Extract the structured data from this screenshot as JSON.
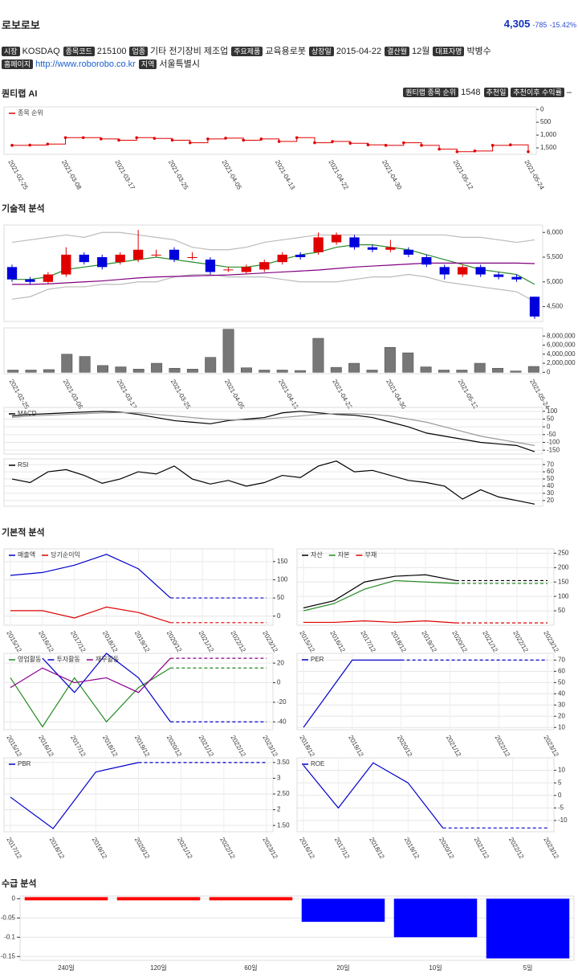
{
  "header": {
    "name": "로보로보",
    "price": "4,305",
    "change": "-785",
    "change_pct": "-15.42%"
  },
  "info": [
    {
      "label": "시장",
      "value": "KOSDAQ"
    },
    {
      "label": "종목코드",
      "value": "215100"
    },
    {
      "label": "업종",
      "value": "기타 전기장비 제조업"
    },
    {
      "label": "주요제품",
      "value": "교육용로봇"
    },
    {
      "label": "상장일",
      "value": "2015-04-22"
    },
    {
      "label": "결산월",
      "value": "12월"
    },
    {
      "label": "대표자명",
      "value": "박병수"
    }
  ],
  "info2": [
    {
      "label": "홈페이지",
      "value": "http://www.roborobo.co.kr"
    },
    {
      "label": "지역",
      "value": "서울특별시"
    }
  ],
  "quantilab": {
    "title": "퀀티랩 AI",
    "items": [
      {
        "label": "퀀티랩 종목 순위",
        "value": "1548"
      },
      {
        "label": "추천일"
      },
      {
        "label": "추천이후 수익률",
        "value": "–"
      }
    ]
  },
  "sections": [
    "기술적 분석",
    "기본적 분석",
    "수급 분석"
  ],
  "chart_data": [
    {
      "type": "step",
      "y_reversed": true,
      "ylim": [
        -100,
        1750
      ],
      "yticks": [
        0,
        500,
        {
          "value": 1000,
          "label": "1,000"
        },
        {
          "value": 1500,
          "label": "1,500"
        }
      ],
      "categories": [
        "2021-02-25",
        null,
        null,
        "2021-03-08",
        null,
        null,
        "2021-03-17",
        null,
        null,
        "2021-03-25",
        null,
        null,
        "2021-04-05",
        null,
        null,
        "2021-04-13",
        null,
        null,
        "2021-04-22",
        null,
        null,
        "2021-04-30",
        null,
        null,
        null,
        "2021-05-12",
        null,
        null,
        null,
        "2021-05-24"
      ],
      "series": [
        {
          "name": "종목 순위",
          "color": "#e00000",
          "values": [
            1400,
            1390,
            1350,
            1100,
            1100,
            1150,
            1200,
            1100,
            1130,
            1200,
            1300,
            1150,
            1120,
            1200,
            1150,
            1250,
            1100,
            1300,
            1250,
            1320,
            1380,
            1400,
            1300,
            1400,
            1550,
            1650,
            1620,
            1400,
            1380,
            1650
          ]
        }
      ]
    },
    {
      "type": "candlestick",
      "ylim": [
        4200,
        6150
      ],
      "yticks": [
        {
          "value": 4500,
          "label": "4,500"
        },
        {
          "value": 5000,
          "label": "5,000"
        },
        {
          "value": 5500,
          "label": "5,500"
        },
        {
          "value": 6000,
          "label": "6,000"
        }
      ],
      "up_color": "#e00000",
      "down_color": "#0000dd",
      "open": [
        5300,
        5050,
        5000,
        5150,
        5550,
        5500,
        5400,
        5450,
        5550,
        5650,
        5500,
        5450,
        5250,
        5200,
        5250,
        5400,
        5550,
        5600,
        5800,
        5900,
        5700,
        5650,
        5650,
        5500,
        5300,
        5150,
        5300,
        5150,
        5100,
        4700
      ],
      "high": [
        5350,
        5100,
        5200,
        5700,
        5600,
        5550,
        5600,
        6050,
        5650,
        5700,
        5600,
        5500,
        5300,
        5350,
        5450,
        5600,
        5600,
        6000,
        6000,
        5950,
        5750,
        5850,
        5700,
        5550,
        5350,
        5350,
        5350,
        5200,
        5150,
        4700
      ],
      "low": [
        5000,
        4950,
        4950,
        5100,
        5350,
        5250,
        5350,
        5400,
        5500,
        5400,
        5450,
        5150,
        5200,
        5150,
        5200,
        5350,
        5450,
        5550,
        5750,
        5650,
        5600,
        5600,
        5500,
        5300,
        5050,
        5100,
        5100,
        5050,
        5000,
        4250
      ],
      "close": [
        5050,
        5000,
        5150,
        5550,
        5400,
        5300,
        5550,
        5650,
        5550,
        5450,
        5500,
        5200,
        5250,
        5300,
        5400,
        5550,
        5500,
        5900,
        5950,
        5700,
        5650,
        5700,
        5550,
        5350,
        5150,
        5300,
        5150,
        5100,
        5050,
        4300
      ],
      "series": [
        {
          "color": "#bbbbbb",
          "values": [
            5800,
            5850,
            5900,
            5950,
            5900,
            6000,
            6000,
            5950,
            5900,
            5850,
            5700,
            5650,
            5650,
            5700,
            5800,
            5850,
            5900,
            5950,
            5950,
            5950,
            5950,
            5950,
            5950,
            5950,
            5950,
            5900,
            5900,
            5850,
            5800,
            5850
          ]
        },
        {
          "color": "#bbbbbb",
          "values": [
            4650,
            4700,
            4850,
            4900,
            4900,
            4950,
            4950,
            5000,
            5000,
            5100,
            5150,
            5150,
            5100,
            5100,
            5100,
            5050,
            5000,
            5000,
            5000,
            5050,
            5100,
            5100,
            5150,
            5100,
            5000,
            4950,
            4900,
            4850,
            4800,
            4600
          ]
        },
        {
          "color": "#2a8a2a",
          "values": [
            5050,
            5050,
            5100,
            5250,
            5300,
            5350,
            5400,
            5450,
            5500,
            5450,
            5400,
            5350,
            5300,
            5300,
            5350,
            5450,
            5550,
            5600,
            5700,
            5750,
            5750,
            5700,
            5650,
            5550,
            5450,
            5350,
            5250,
            5200,
            5150,
            4950
          ]
        },
        {
          "color": "#800080",
          "values": [
            4950,
            4950,
            4960,
            4980,
            5000,
            5020,
            5050,
            5080,
            5100,
            5110,
            5120,
            5130,
            5140,
            5160,
            5180,
            5200,
            5220,
            5240,
            5270,
            5300,
            5320,
            5340,
            5360,
            5380,
            5380,
            5380,
            5380,
            5380,
            5380,
            5370
          ]
        }
      ]
    },
    {
      "type": "bar",
      "color": "#777777",
      "ylim": [
        -300000,
        9800000
      ],
      "yticks": [
        0,
        {
          "value": 2000000,
          "label": "2,000,000"
        },
        {
          "value": 4000000,
          "label": "4,000,000"
        },
        {
          "value": 6000000,
          "label": "6,000,000"
        },
        {
          "value": 8000000,
          "label": "8,000,000"
        }
      ],
      "categories": [
        "2021-02-25",
        null,
        null,
        "2021-03-08",
        null,
        null,
        "2021-03-17",
        null,
        null,
        "2021-03-25",
        null,
        null,
        "2021-04-05",
        null,
        null,
        "2021-04-13",
        null,
        null,
        "2021-04-22",
        null,
        null,
        "2021-04-30",
        null,
        null,
        null,
        "2021-05-12",
        null,
        null,
        null,
        "2021-05-24"
      ],
      "values": [
        500000,
        500000,
        600000,
        4000000,
        3500000,
        1500000,
        1200000,
        700000,
        2000000,
        900000,
        700000,
        3300000,
        9500000,
        1000000,
        500000,
        500000,
        400000,
        7500000,
        1100000,
        2000000,
        500000,
        5500000,
        4300000,
        1200000,
        500000,
        500000,
        2000000,
        900000,
        300000,
        1300000
      ]
    },
    {
      "type": "line",
      "ylim": [
        -175,
        125
      ],
      "yticks": [
        100,
        50,
        0,
        -50,
        -100,
        -150
      ],
      "grid": true,
      "series": [
        {
          "name": "MACD",
          "color": "#000000",
          "values": [
            70,
            80,
            85,
            90,
            95,
            100,
            95,
            80,
            60,
            40,
            30,
            20,
            40,
            50,
            60,
            90,
            100,
            90,
            80,
            75,
            60,
            30,
            0,
            -40,
            -60,
            -80,
            -100,
            -110,
            -120,
            -160
          ]
        },
        {
          "color": "#999999",
          "values": [
            60,
            70,
            75,
            80,
            85,
            90,
            92,
            90,
            80,
            70,
            60,
            50,
            45,
            45,
            50,
            60,
            70,
            80,
            85,
            85,
            80,
            70,
            50,
            30,
            0,
            -30,
            -60,
            -80,
            -100,
            -120
          ]
        }
      ]
    },
    {
      "type": "line",
      "ylim": [
        12,
        78
      ],
      "yticks": [
        20,
        30,
        40,
        50,
        60,
        70
      ],
      "grid": true,
      "series": [
        {
          "name": "RSI",
          "color": "#000000",
          "values": [
            50,
            45,
            60,
            63,
            55,
            44,
            50,
            60,
            57,
            68,
            50,
            43,
            48,
            40,
            45,
            55,
            52,
            68,
            75,
            60,
            62,
            55,
            48,
            45,
            40,
            22,
            35,
            25,
            20,
            15
          ]
        }
      ]
    },
    {
      "type": "line",
      "ylim": [
        -25,
        185
      ],
      "yticks": [
        0,
        50,
        100,
        150
      ],
      "grid": true,
      "dashed_from_index": 5,
      "categories": [
        "2015/12",
        "2016/12",
        "2017/12",
        "2018/12",
        "2019/12",
        "2020/12",
        "2021/12",
        "2022/12",
        "2023/12"
      ],
      "series": [
        {
          "name": "매출액",
          "color": "#0000cc",
          "values": [
            112,
            120,
            140,
            170,
            130,
            50,
            50,
            50,
            50
          ]
        },
        {
          "name": "당기순이익",
          "color": "#dd0000",
          "values": [
            15,
            15,
            -5,
            25,
            10,
            -18,
            -18,
            -18,
            -18
          ]
        }
      ]
    },
    {
      "type": "line",
      "ylim": [
        0,
        265
      ],
      "yticks": [
        50,
        100,
        150,
        200,
        250
      ],
      "grid": true,
      "dashed_from_index": 5,
      "categories": [
        "2015/12",
        "2016/12",
        "2017/12",
        "2018/12",
        "2019/12",
        "2020/12",
        "2021/12",
        "2022/12",
        "2023/12"
      ],
      "series": [
        {
          "name": "자산",
          "color": "#000000",
          "values": [
            60,
            85,
            150,
            170,
            175,
            155,
            155,
            155,
            155
          ]
        },
        {
          "name": "자본",
          "color": "#228b22",
          "values": [
            50,
            75,
            125,
            155,
            150,
            145,
            145,
            145,
            145
          ]
        },
        {
          "name": "부채",
          "color": "#dd0000",
          "values": [
            10,
            10,
            15,
            10,
            15,
            8,
            8,
            8,
            8
          ]
        }
      ]
    },
    {
      "type": "line",
      "ylim": [
        -48,
        30
      ],
      "yticks": [
        20,
        0,
        -20,
        -40
      ],
      "grid": true,
      "dashed_from_index": 5,
      "categories": [
        "2015/12",
        "2016/12",
        "2017/12",
        "2018/12",
        "2019/12",
        "2020/12",
        "2021/12",
        "2022/12",
        "2023/12"
      ],
      "series": [
        {
          "name": "영업활동",
          "color": "#228b22",
          "values": [
            5,
            -45,
            5,
            -40,
            -5,
            15,
            15,
            15,
            15
          ]
        },
        {
          "name": "투자활동",
          "color": "#0000cc",
          "values": [
            null,
            25,
            -10,
            30,
            5,
            -40,
            -40,
            -40,
            -40
          ]
        },
        {
          "name": "재무활동",
          "color": "#8b008b",
          "values": [
            -5,
            15,
            0,
            5,
            -10,
            25,
            25,
            25,
            25
          ]
        }
      ]
    },
    {
      "type": "line",
      "ylim": [
        8,
        76
      ],
      "yticks": [
        10,
        20,
        30,
        40,
        50,
        60,
        70
      ],
      "grid": true,
      "dashed_from_index": 2,
      "categories": [
        "2018/12",
        "2019/12",
        "2020/12",
        "2021/12",
        "2022/12",
        "2023/12"
      ],
      "series": [
        {
          "name": "PER",
          "color": "#0000cc",
          "values": [
            10,
            70,
            70,
            70,
            70,
            70
          ]
        }
      ]
    },
    {
      "type": "line",
      "ylim": [
        1.3,
        3.65
      ],
      "yticks": [
        {
          "value": 1.5,
          "label": "1.50"
        },
        2,
        {
          "value": 2.5,
          "label": "2.50"
        },
        3,
        {
          "value": 3.5,
          "label": "3.50"
        }
      ],
      "grid": true,
      "dashed_from_index": 3,
      "categories": [
        "2017/12",
        "2018/12",
        "2019/12",
        "2020/12",
        "2021/12",
        "2022/12",
        "2023/12"
      ],
      "series": [
        {
          "name": "PBR",
          "color": "#0000cc",
          "values": [
            2.4,
            1.4,
            3.2,
            3.5,
            3.5,
            3.5,
            3.5
          ]
        }
      ]
    },
    {
      "type": "line",
      "ylim": [
        -14.5,
        15
      ],
      "yticks": [
        10,
        5,
        0,
        -5,
        -10
      ],
      "grid": true,
      "dashed_from_index": 4,
      "categories": [
        "2016/12",
        "2017/12",
        "2018/12",
        "2019/12",
        "2020/12",
        "2021/12",
        "2022/12",
        "2023/12"
      ],
      "series": [
        {
          "name": "ROE",
          "color": "#0000cc",
          "values": [
            12,
            -5,
            13,
            5,
            -13,
            -13,
            -13,
            -13
          ]
        }
      ]
    },
    {
      "type": "colbar",
      "ylim": [
        -0.16,
        0.007
      ],
      "yticks": [
        0,
        -0.05,
        -0.1,
        -0.15
      ],
      "grid": true,
      "categories": [
        "240일",
        "120일",
        "60일",
        "20일",
        "10일",
        "5일"
      ],
      "values": [
        0,
        0,
        0,
        -0.06,
        -0.1,
        -0.155
      ],
      "colors": [
        "#ff0000",
        "#ff0000",
        "#ff0000",
        "#0000ff",
        "#0000ff",
        "#0000ff"
      ]
    }
  ]
}
